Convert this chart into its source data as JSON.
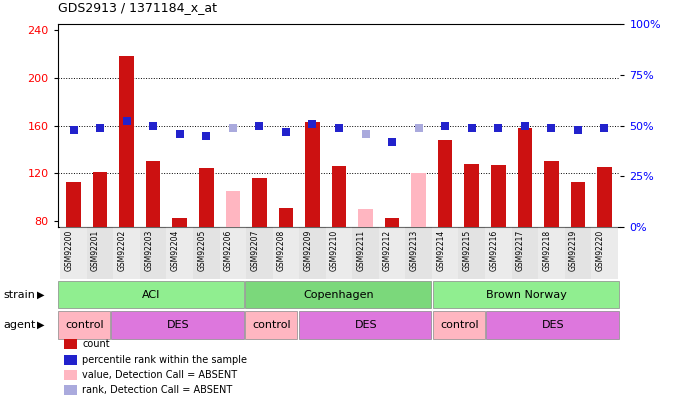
{
  "title": "GDS2913 / 1371184_x_at",
  "samples": [
    "GSM92200",
    "GSM92201",
    "GSM92202",
    "GSM92203",
    "GSM92204",
    "GSM92205",
    "GSM92206",
    "GSM92207",
    "GSM92208",
    "GSM92209",
    "GSM92210",
    "GSM92211",
    "GSM92212",
    "GSM92213",
    "GSM92214",
    "GSM92215",
    "GSM92216",
    "GSM92217",
    "GSM92218",
    "GSM92219",
    "GSM92220"
  ],
  "count_values": [
    113,
    121,
    218,
    130,
    82,
    124,
    null,
    116,
    91,
    163,
    126,
    null,
    82,
    null,
    148,
    128,
    127,
    158,
    130,
    113,
    125
  ],
  "count_absent": [
    null,
    null,
    null,
    null,
    null,
    null,
    105,
    null,
    null,
    null,
    null,
    90,
    null,
    120,
    null,
    null,
    null,
    null,
    null,
    null,
    null
  ],
  "rank_values": [
    48,
    49,
    52,
    50,
    46,
    45,
    null,
    50,
    47,
    51,
    49,
    null,
    42,
    null,
    50,
    49,
    49,
    50,
    49,
    48,
    49
  ],
  "rank_absent": [
    null,
    null,
    null,
    null,
    null,
    null,
    49,
    null,
    null,
    null,
    null,
    46,
    null,
    49,
    null,
    null,
    null,
    null,
    null,
    null,
    null
  ],
  "ylim_left": [
    75,
    245
  ],
  "ylim_right": [
    0,
    100
  ],
  "left_ticks": [
    80,
    120,
    160,
    200,
    240
  ],
  "right_ticks": [
    0,
    25,
    50,
    75,
    100
  ],
  "grid_values": [
    120,
    160,
    200
  ],
  "strain_groups": [
    {
      "label": "ACI",
      "start": 0,
      "end": 7,
      "color": "#90EE90"
    },
    {
      "label": "Copenhagen",
      "start": 7,
      "end": 14,
      "color": "#7BD87B"
    },
    {
      "label": "Brown Norway",
      "start": 14,
      "end": 21,
      "color": "#90EE90"
    }
  ],
  "agent_groups": [
    {
      "label": "control",
      "start": 0,
      "end": 2,
      "color": "#FFB6C1"
    },
    {
      "label": "DES",
      "start": 2,
      "end": 7,
      "color": "#DD77DD"
    },
    {
      "label": "control",
      "start": 7,
      "end": 9,
      "color": "#FFB6C1"
    },
    {
      "label": "DES",
      "start": 9,
      "end": 14,
      "color": "#DD77DD"
    },
    {
      "label": "control",
      "start": 14,
      "end": 16,
      "color": "#FFB6C1"
    },
    {
      "label": "DES",
      "start": 16,
      "end": 21,
      "color": "#DD77DD"
    }
  ],
  "bar_color_present": "#CC1111",
  "bar_color_absent": "#FFB6C1",
  "rank_color_present": "#2222CC",
  "rank_color_absent": "#AAAADD",
  "bar_width": 0.55,
  "rank_marker_size": 30,
  "background_color": "#ffffff",
  "plot_bg_color": "#ffffff",
  "xtick_bg_color": "#D0D0D0",
  "legend_items": [
    {
      "label": "count",
      "color": "#CC1111"
    },
    {
      "label": "percentile rank within the sample",
      "color": "#2222CC"
    },
    {
      "label": "value, Detection Call = ABSENT",
      "color": "#FFB6C1"
    },
    {
      "label": "rank, Detection Call = ABSENT",
      "color": "#AAAADD"
    }
  ]
}
